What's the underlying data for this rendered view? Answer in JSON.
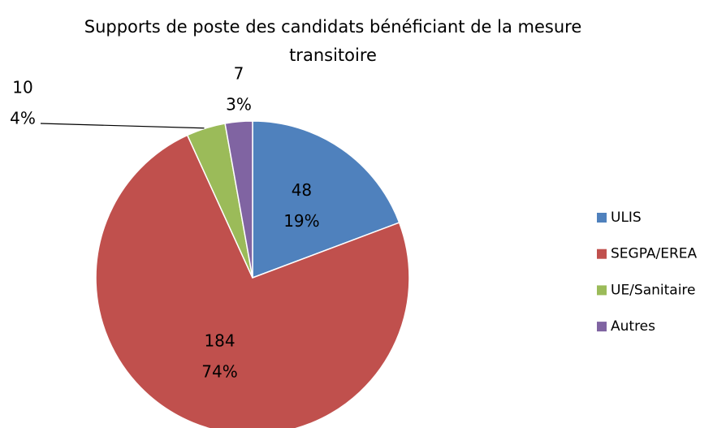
{
  "chart_data": {
    "type": "pie",
    "title": "Supports de poste des candidats bénéficiant de la mesure transitoire",
    "categories": [
      "ULIS",
      "SEGPA/EREA",
      "UE/Sanitaire",
      "Autres"
    ],
    "values": [
      48,
      184,
      10,
      7
    ],
    "percent_labels": [
      "19%",
      "74%",
      "4%",
      "3%"
    ],
    "colors": [
      "#4f81bd",
      "#c0504d",
      "#9bbb59",
      "#8064a2"
    ],
    "legend": "right"
  }
}
